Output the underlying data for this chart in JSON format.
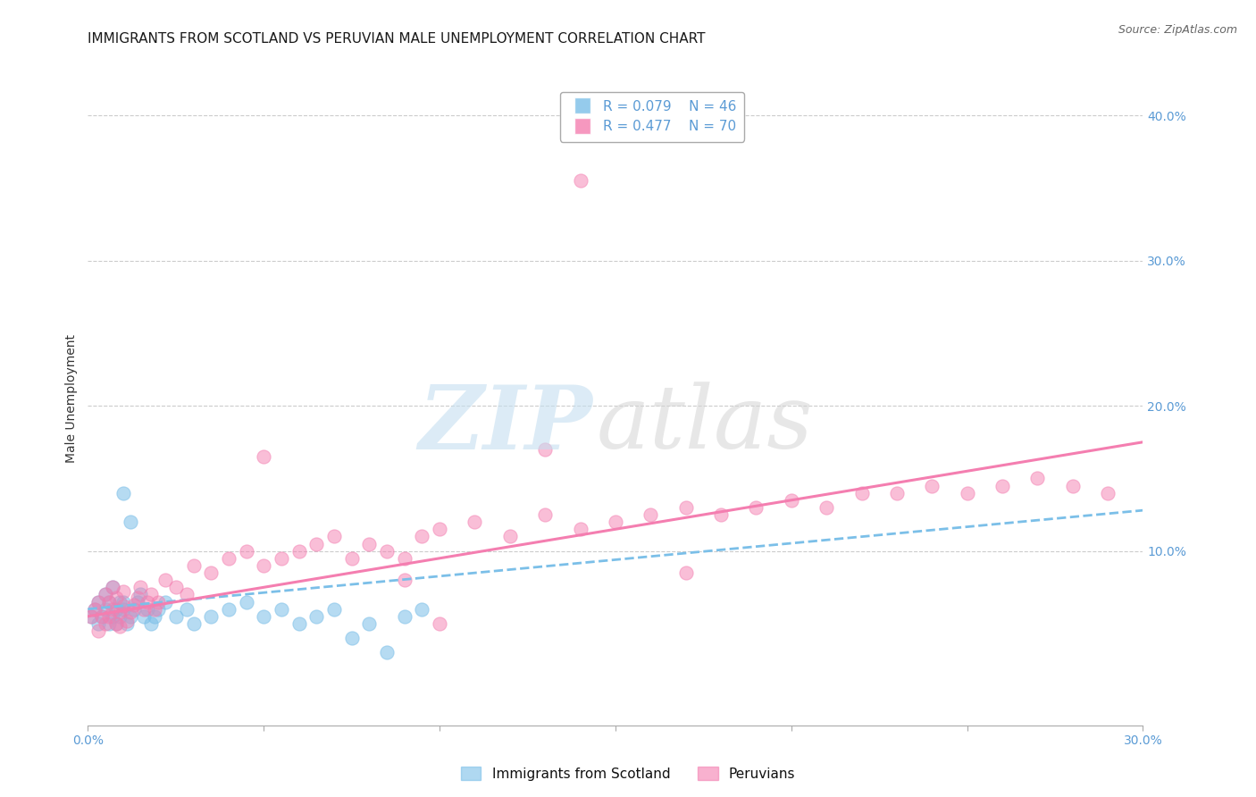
{
  "title": "IMMIGRANTS FROM SCOTLAND VS PERUVIAN MALE UNEMPLOYMENT CORRELATION CHART",
  "source_text": "Source: ZipAtlas.com",
  "ylabel": "Male Unemployment",
  "y_ticks": [
    0.0,
    0.1,
    0.2,
    0.3,
    0.4
  ],
  "y_tick_labels": [
    "",
    "10.0%",
    "20.0%",
    "30.0%",
    "40.0%"
  ],
  "x_range": [
    0.0,
    0.3
  ],
  "y_range": [
    -0.02,
    0.43
  ],
  "x_ticks": [
    0.0,
    0.05,
    0.1,
    0.15,
    0.2,
    0.25,
    0.3
  ],
  "legend_blue_r": "R = 0.079",
  "legend_blue_n": "N = 46",
  "legend_pink_r": "R = 0.477",
  "legend_pink_n": "N = 70",
  "blue_color": "#7bbfe8",
  "pink_color": "#f47eb0",
  "blue_label": "Immigrants from Scotland",
  "pink_label": "Peruvians",
  "blue_scatter_x": [
    0.001,
    0.002,
    0.003,
    0.003,
    0.004,
    0.005,
    0.005,
    0.006,
    0.006,
    0.007,
    0.007,
    0.008,
    0.008,
    0.009,
    0.009,
    0.01,
    0.01,
    0.011,
    0.012,
    0.013,
    0.014,
    0.015,
    0.016,
    0.017,
    0.018,
    0.019,
    0.02,
    0.022,
    0.025,
    0.028,
    0.03,
    0.035,
    0.04,
    0.045,
    0.05,
    0.055,
    0.06,
    0.065,
    0.07,
    0.075,
    0.08,
    0.085,
    0.09,
    0.095,
    0.01,
    0.012
  ],
  "blue_scatter_y": [
    0.055,
    0.06,
    0.05,
    0.065,
    0.055,
    0.06,
    0.07,
    0.05,
    0.065,
    0.055,
    0.075,
    0.06,
    0.05,
    0.065,
    0.055,
    0.06,
    0.065,
    0.05,
    0.055,
    0.06,
    0.065,
    0.07,
    0.055,
    0.06,
    0.05,
    0.055,
    0.06,
    0.065,
    0.055,
    0.06,
    0.05,
    0.055,
    0.06,
    0.065,
    0.055,
    0.06,
    0.05,
    0.055,
    0.06,
    0.04,
    0.05,
    0.03,
    0.055,
    0.06,
    0.14,
    0.12
  ],
  "pink_scatter_x": [
    0.001,
    0.002,
    0.003,
    0.003,
    0.004,
    0.005,
    0.005,
    0.006,
    0.006,
    0.007,
    0.007,
    0.008,
    0.008,
    0.009,
    0.009,
    0.01,
    0.01,
    0.011,
    0.012,
    0.013,
    0.014,
    0.015,
    0.016,
    0.017,
    0.018,
    0.019,
    0.02,
    0.022,
    0.025,
    0.028,
    0.03,
    0.035,
    0.04,
    0.045,
    0.05,
    0.055,
    0.06,
    0.065,
    0.07,
    0.075,
    0.08,
    0.085,
    0.09,
    0.095,
    0.1,
    0.11,
    0.12,
    0.13,
    0.14,
    0.15,
    0.16,
    0.17,
    0.18,
    0.19,
    0.2,
    0.21,
    0.22,
    0.23,
    0.24,
    0.25,
    0.26,
    0.27,
    0.28,
    0.29,
    0.05,
    0.09,
    0.13,
    0.17,
    0.1,
    0.14
  ],
  "pink_scatter_y": [
    0.055,
    0.06,
    0.045,
    0.065,
    0.055,
    0.07,
    0.05,
    0.065,
    0.055,
    0.075,
    0.06,
    0.05,
    0.068,
    0.058,
    0.048,
    0.062,
    0.072,
    0.052,
    0.058,
    0.063,
    0.068,
    0.075,
    0.06,
    0.065,
    0.07,
    0.06,
    0.065,
    0.08,
    0.075,
    0.07,
    0.09,
    0.085,
    0.095,
    0.1,
    0.09,
    0.095,
    0.1,
    0.105,
    0.11,
    0.095,
    0.105,
    0.1,
    0.095,
    0.11,
    0.115,
    0.12,
    0.11,
    0.125,
    0.115,
    0.12,
    0.125,
    0.13,
    0.125,
    0.13,
    0.135,
    0.13,
    0.14,
    0.14,
    0.145,
    0.14,
    0.145,
    0.15,
    0.145,
    0.14,
    0.165,
    0.08,
    0.17,
    0.085,
    0.05,
    0.355
  ],
  "blue_trend_x": [
    0.0,
    0.3
  ],
  "blue_trend_y": [
    0.06,
    0.128
  ],
  "pink_trend_x": [
    0.0,
    0.3
  ],
  "pink_trend_y": [
    0.055,
    0.175
  ],
  "title_fontsize": 11,
  "tick_fontsize": 10,
  "legend_fontsize": 11,
  "ylabel_fontsize": 10,
  "background_color": "#ffffff",
  "grid_color": "#cccccc",
  "title_color": "#1a1a1a",
  "tick_color": "#5b9bd5",
  "source_color": "#666666"
}
